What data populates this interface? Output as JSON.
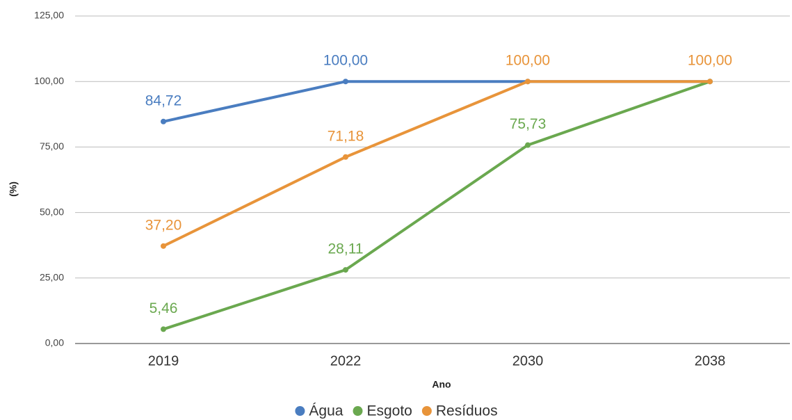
{
  "chart_data": {
    "type": "line",
    "x_label": "Ano",
    "y_label": "(%)",
    "categories": [
      "2019",
      "2022",
      "2030",
      "2038"
    ],
    "series": [
      {
        "name": "Água",
        "color": "#4a7dc0",
        "values": [
          84.72,
          100,
          100,
          100
        ],
        "value_labels": [
          "84,72",
          "100,00",
          null,
          null
        ]
      },
      {
        "name": "Esgoto",
        "color": "#6aa84f",
        "values": [
          5.46,
          28.11,
          75.73,
          100
        ],
        "value_labels": [
          "5,46",
          "28,11",
          "75,73",
          null
        ]
      },
      {
        "name": "Resíduos",
        "color": "#e8943a",
        "values": [
          37.2,
          71.18,
          100,
          100
        ],
        "value_labels": [
          "37,20",
          "71,18",
          "100,00",
          "100,00"
        ]
      }
    ],
    "ylim": [
      0,
      125
    ],
    "yticks": [
      {
        "value": 0,
        "label": "0,00"
      },
      {
        "value": 25,
        "label": "25,00"
      },
      {
        "value": 50,
        "label": "50,00"
      },
      {
        "value": 75,
        "label": "75,00"
      },
      {
        "value": 100,
        "label": "100,00"
      },
      {
        "value": 125,
        "label": "125,00"
      }
    ],
    "grid": true,
    "legend": "bottom"
  }
}
